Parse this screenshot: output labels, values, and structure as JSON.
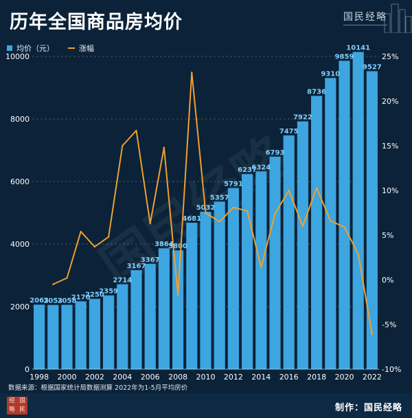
{
  "header": {
    "title": "历年全国商品房均价",
    "brand": "国民经略"
  },
  "legend": {
    "bar_label": "均价（元）",
    "line_label": "涨幅"
  },
  "footer": {
    "source": "数据来源：根据国家统计局数据测算  2022年为1-5月平均房价",
    "maker": "制作：国民经略",
    "seal_chars": [
      "经",
      "国",
      "略",
      "民"
    ]
  },
  "colors": {
    "bar": "#3da5e0",
    "line": "#f0a030",
    "label": "#7fd0ff",
    "background": "#0b2238"
  },
  "chart_data": {
    "type": "bar",
    "x": [
      1998,
      1999,
      2000,
      2001,
      2002,
      2003,
      2004,
      2005,
      2006,
      2007,
      2008,
      2009,
      2010,
      2011,
      2012,
      2013,
      2014,
      2015,
      2016,
      2017,
      2018,
      2019,
      2020,
      2021,
      2022
    ],
    "x_tick_labels": [
      "1998",
      "2000",
      "2002",
      "2004",
      "2006",
      "2008",
      "2010",
      "2012",
      "2014",
      "2016",
      "2018",
      "2020",
      "2022"
    ],
    "series": [
      {
        "name": "均价（元）",
        "type": "bar",
        "axis": "left",
        "values": [
          2063,
          2053,
          2058,
          2170,
          2250,
          2359,
          2714,
          3167,
          3367,
          3864,
          3800,
          4681,
          5032,
          5357,
          5791,
          6237,
          6324,
          6793,
          7475,
          7922,
          8736,
          9310,
          9859,
          10141,
          9527
        ],
        "data_labels": [
          "2063",
          "2053",
          "2058",
          "2170",
          "2250",
          "2359",
          "2714",
          "3167",
          "3367",
          "3864",
          "3800",
          "4681",
          "5032",
          "5357",
          "5791",
          "6237",
          "6324",
          "6793",
          "7475",
          "7922",
          "8736",
          "9310",
          "9859",
          "10141",
          "9527"
        ]
      },
      {
        "name": "涨幅",
        "type": "line",
        "axis": "right",
        "x": [
          1999,
          2000,
          2001,
          2002,
          2003,
          2004,
          2005,
          2006,
          2007,
          2008,
          2009,
          2010,
          2011,
          2012,
          2013,
          2014,
          2015,
          2016,
          2017,
          2018,
          2019,
          2020,
          2021,
          2022
        ],
        "values": [
          -0.5,
          0.2,
          5.4,
          3.7,
          4.8,
          15.0,
          16.7,
          6.3,
          14.8,
          -1.7,
          23.2,
          7.5,
          6.5,
          8.1,
          7.7,
          1.4,
          7.4,
          10.0,
          6.0,
          10.3,
          6.6,
          5.9,
          2.9,
          -6.1
        ]
      }
    ],
    "y_left": {
      "min": 0,
      "max": 10000,
      "ticks": [
        "0",
        "2000",
        "4000",
        "6000",
        "8000",
        "10000"
      ]
    },
    "y_right": {
      "min": -10,
      "max": 25,
      "ticks": [
        "-10%",
        "-5%",
        "0%",
        "5%",
        "10%",
        "15%",
        "20%",
        "25%"
      ]
    },
    "grid": true,
    "legend_position": "top-left"
  }
}
